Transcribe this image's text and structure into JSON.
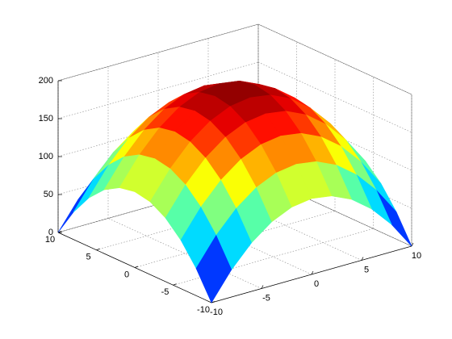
{
  "chart_data": {
    "type": "surface",
    "colormap": "jet",
    "grid": true,
    "x": [
      -10,
      -8,
      -6,
      -4,
      -2,
      0,
      2,
      4,
      6,
      8,
      10
    ],
    "y": [
      -10,
      -8,
      -6,
      -4,
      -2,
      0,
      2,
      4,
      6,
      8,
      10
    ],
    "z": [
      [
        0,
        36,
        64,
        84,
        96,
        100,
        96,
        84,
        64,
        36,
        0
      ],
      [
        36,
        72,
        100,
        120,
        132,
        136,
        132,
        120,
        100,
        72,
        36
      ],
      [
        64,
        100,
        128,
        148,
        160,
        164,
        160,
        148,
        128,
        100,
        64
      ],
      [
        84,
        120,
        148,
        168,
        180,
        184,
        180,
        168,
        148,
        120,
        84
      ],
      [
        96,
        132,
        160,
        180,
        192,
        196,
        192,
        180,
        160,
        132,
        96
      ],
      [
        100,
        136,
        164,
        184,
        196,
        200,
        196,
        184,
        164,
        136,
        100
      ],
      [
        96,
        132,
        160,
        180,
        192,
        196,
        192,
        180,
        160,
        132,
        96
      ],
      [
        84,
        120,
        148,
        168,
        180,
        184,
        180,
        168,
        148,
        120,
        84
      ],
      [
        64,
        100,
        128,
        148,
        160,
        164,
        160,
        148,
        128,
        100,
        64
      ],
      [
        36,
        72,
        100,
        120,
        132,
        136,
        132,
        120,
        100,
        72,
        36
      ],
      [
        0,
        36,
        64,
        84,
        96,
        100,
        96,
        84,
        64,
        36,
        0
      ]
    ],
    "xlim": [
      -10,
      10
    ],
    "ylim": [
      -10,
      10
    ],
    "zlim": [
      0,
      200
    ],
    "xticks": [
      -10,
      -5,
      0,
      5,
      10
    ],
    "yticks": [
      -10,
      -5,
      0,
      5,
      10
    ],
    "zticks": [
      0,
      50,
      100,
      150,
      200
    ]
  }
}
